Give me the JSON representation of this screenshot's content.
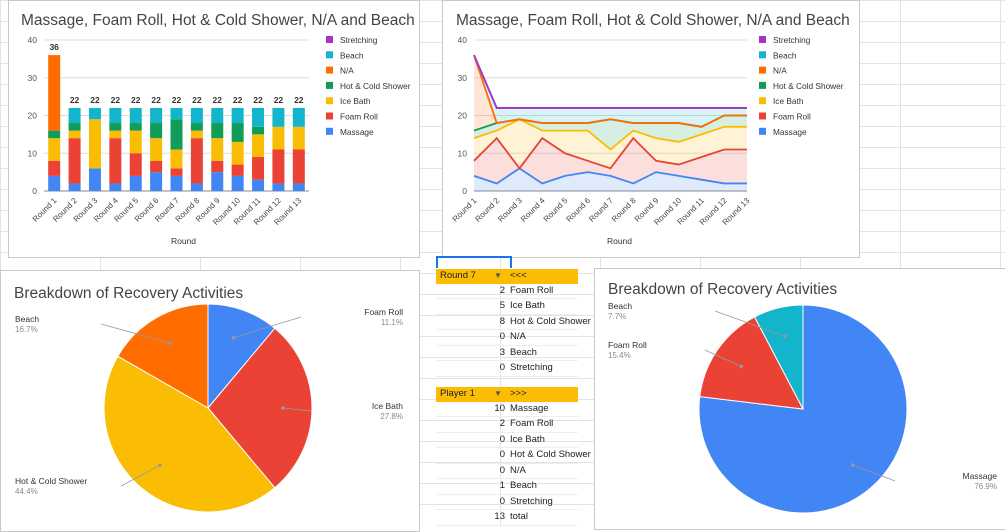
{
  "colors": {
    "massage": "#4285f4",
    "foam": "#ea4335",
    "ice": "#fbbc04",
    "hot": "#0f9d58",
    "na": "#ff6d01",
    "beach": "#12b5cb",
    "stretching": "#ab30c4",
    "header": "#fbbc04"
  },
  "chart_data": [
    {
      "type": "bar",
      "stacked": true,
      "title": "Massage, Foam Roll, Hot & Cold Shower, N/A and Beach",
      "xlabel": "Round",
      "ylabel": "",
      "ylim": [
        0,
        40
      ],
      "yticks": [
        0,
        10,
        20,
        30,
        40
      ],
      "categories": [
        "Round 1",
        "Round 2",
        "Round 3",
        "Round 4",
        "Round 5",
        "Round 6",
        "Round 7",
        "Round 8",
        "Round 9",
        "Round 10",
        "Round 11",
        "Round 12",
        "Round 13"
      ],
      "totals": [
        36,
        22,
        22,
        22,
        22,
        22,
        22,
        22,
        22,
        22,
        22,
        22,
        22
      ],
      "legend": [
        "Stretching",
        "Beach",
        "N/A",
        "Hot & Cold Shower",
        "Ice Bath",
        "Foam Roll",
        "Massage"
      ],
      "series": [
        {
          "name": "Massage",
          "color": "#4285f4",
          "values": [
            4,
            2,
            6,
            2,
            4,
            5,
            4,
            2,
            5,
            4,
            3,
            2,
            2
          ]
        },
        {
          "name": "Foam Roll",
          "color": "#ea4335",
          "values": [
            4,
            12,
            0,
            12,
            6,
            3,
            2,
            12,
            3,
            3,
            6,
            9,
            9
          ]
        },
        {
          "name": "Ice Bath",
          "color": "#fbbc04",
          "values": [
            6,
            2,
            13,
            2,
            6,
            6,
            5,
            2,
            6,
            6,
            6,
            6,
            6
          ]
        },
        {
          "name": "Hot & Cold Shower",
          "color": "#0f9d58",
          "values": [
            2,
            2,
            0,
            2,
            2,
            4,
            8,
            2,
            4,
            5,
            2,
            0,
            0
          ]
        },
        {
          "name": "N/A",
          "color": "#ff6d01",
          "values": [
            20,
            0,
            0,
            0,
            0,
            0,
            0,
            0,
            0,
            0,
            0,
            0,
            0
          ]
        },
        {
          "name": "Beach",
          "color": "#12b5cb",
          "values": [
            0,
            4,
            3,
            4,
            4,
            4,
            3,
            4,
            4,
            4,
            5,
            5,
            5
          ]
        },
        {
          "name": "Stretching",
          "color": "#ab30c4",
          "values": [
            0,
            0,
            0,
            0,
            0,
            0,
            0,
            0,
            0,
            0,
            0,
            0,
            0
          ]
        }
      ]
    },
    {
      "type": "area",
      "stacked": true,
      "title": "Massage, Foam Roll, Hot & Cold Shower, N/A and Beach",
      "xlabel": "Round",
      "ylim": [
        0,
        40
      ],
      "yticks": [
        0,
        10,
        20,
        30,
        40
      ],
      "categories": [
        "Round 1",
        "Round 2",
        "Round 3",
        "Round 4",
        "Round 5",
        "Round 6",
        "Round 7",
        "Round 8",
        "Round 9",
        "Round 10",
        "Round 11",
        "Round 12",
        "Round 13"
      ],
      "legend": [
        "Stretching",
        "Beach",
        "N/A",
        "Hot & Cold Shower",
        "Ice Bath",
        "Foam Roll",
        "Massage"
      ],
      "series": [
        {
          "name": "Massage",
          "color": "#4285f4",
          "values": [
            4,
            2,
            6,
            2,
            4,
            5,
            4,
            2,
            5,
            4,
            3,
            2,
            2
          ]
        },
        {
          "name": "Foam Roll",
          "color": "#ea4335",
          "values": [
            4,
            12,
            0,
            12,
            6,
            3,
            2,
            12,
            3,
            3,
            6,
            9,
            9
          ]
        },
        {
          "name": "Ice Bath",
          "color": "#fbbc04",
          "values": [
            6,
            2,
            13,
            2,
            6,
            8,
            5,
            2,
            6,
            6,
            6,
            6,
            6
          ]
        },
        {
          "name": "Hot & Cold Shower",
          "color": "#0f9d58",
          "values": [
            2,
            2,
            0,
            2,
            2,
            2,
            8,
            2,
            4,
            5,
            2,
            3,
            3
          ]
        },
        {
          "name": "N/A",
          "color": "#ff6d01",
          "values": [
            20,
            0,
            0,
            0,
            0,
            0,
            0,
            0,
            0,
            0,
            0,
            0,
            0
          ]
        },
        {
          "name": "Beach",
          "color": "#12b5cb",
          "values": [
            0,
            4,
            3,
            4,
            4,
            4,
            3,
            4,
            4,
            4,
            5,
            2,
            2
          ]
        },
        {
          "name": "Stretching",
          "color": "#ab30c4",
          "values": [
            0,
            0,
            0,
            0,
            0,
            0,
            0,
            0,
            0,
            0,
            0,
            0,
            0
          ]
        }
      ]
    },
    {
      "type": "pie",
      "title": "Breakdown of Recovery Activities",
      "slices": [
        {
          "label": "Foam Roll",
          "value": 11.1,
          "pct": "11.1%",
          "color": "#4285f4",
          "side": "right"
        },
        {
          "label": "Ice Bath",
          "value": 27.8,
          "pct": "27.8%",
          "color": "#ea4335",
          "side": "right"
        },
        {
          "label": "Hot & Cold Shower",
          "value": 44.4,
          "pct": "44.4%",
          "color": "#fbbc04",
          "side": "left"
        },
        {
          "label": "Beach",
          "value": 16.7,
          "pct": "16.7%",
          "color": "#ff6d01",
          "side": "left"
        }
      ]
    },
    {
      "type": "pie",
      "title": "Breakdown of Recovery Activities",
      "slices": [
        {
          "label": "Massage",
          "value": 76.9,
          "pct": "76.9%",
          "color": "#4285f4",
          "side": "right"
        },
        {
          "label": "Foam Roll",
          "value": 15.4,
          "pct": "15.4%",
          "color": "#ea4335",
          "side": "left"
        },
        {
          "label": "Beach",
          "value": 7.7,
          "pct": "7.7%",
          "color": "#12b5cb",
          "side": "left"
        }
      ]
    }
  ],
  "table1": {
    "header_left": "Round 7",
    "header_right": "<<<",
    "rows": [
      {
        "n": "2",
        "label": "Foam Roll"
      },
      {
        "n": "5",
        "label": "Ice Bath"
      },
      {
        "n": "8",
        "label": "Hot & Cold Shower"
      },
      {
        "n": "0",
        "label": "N/A"
      },
      {
        "n": "3",
        "label": "Beach"
      },
      {
        "n": "0",
        "label": "Stretching"
      }
    ]
  },
  "table2": {
    "header_left": "Player 1",
    "header_right": ">>>",
    "rows": [
      {
        "n": "10",
        "label": "Massage"
      },
      {
        "n": "2",
        "label": "Foam Roll"
      },
      {
        "n": "0",
        "label": "Ice Bath"
      },
      {
        "n": "0",
        "label": "Hot & Cold Shower"
      },
      {
        "n": "0",
        "label": "N/A"
      },
      {
        "n": "1",
        "label": "Beach"
      },
      {
        "n": "0",
        "label": "Stretching"
      },
      {
        "n": "13",
        "label": "total"
      }
    ]
  }
}
